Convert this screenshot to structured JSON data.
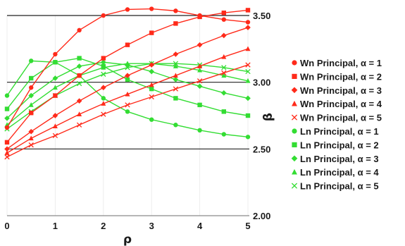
{
  "chart_data": {
    "type": "line",
    "xlabel": "ρ",
    "ylabel": "β",
    "xlim": [
      0,
      5
    ],
    "ylim": [
      2.0,
      3.5
    ],
    "x_ticks": [
      "0",
      "1",
      "2",
      "3",
      "4",
      "5"
    ],
    "y_ticks": [
      "2.00",
      "2.50",
      "3.00",
      "3.50"
    ],
    "grid": "horizontal black lines at y = 2.50, 3.00, 3.50; faint vertical lines at x ticks",
    "legend_placement": "right",
    "x": [
      0,
      0.5,
      1,
      1.5,
      2,
      2.5,
      3,
      3.5,
      4,
      4.5,
      5
    ],
    "series": [
      {
        "name": "Wn Principal, α = 1",
        "color": "#ff2a1a",
        "marker": "circle",
        "values": [
          2.66,
          2.96,
          3.21,
          3.39,
          3.5,
          3.545,
          3.55,
          3.535,
          3.5,
          3.47,
          3.45
        ]
      },
      {
        "name": "Wn Principal, α = 2",
        "color": "#ff2a1a",
        "marker": "square",
        "values": [
          2.55,
          2.77,
          2.9,
          3.05,
          3.18,
          3.28,
          3.37,
          3.44,
          3.49,
          3.52,
          3.54
        ]
      },
      {
        "name": "Wn Principal, α = 3",
        "color": "#ff2a1a",
        "marker": "diamond",
        "values": [
          2.5,
          2.63,
          2.75,
          2.86,
          2.96,
          3.05,
          3.13,
          3.21,
          3.28,
          3.35,
          3.41
        ]
      },
      {
        "name": "Wn Principal, α = 4",
        "color": "#ff2a1a",
        "marker": "triangle",
        "values": [
          2.47,
          2.58,
          2.67,
          2.76,
          2.84,
          2.91,
          2.98,
          3.05,
          3.12,
          3.19,
          3.25
        ]
      },
      {
        "name": "Wn Principal, α = 5",
        "color": "#ff2a1a",
        "marker": "x",
        "values": [
          2.44,
          2.53,
          2.6,
          2.68,
          2.76,
          2.83,
          2.89,
          2.95,
          3.01,
          3.07,
          3.13
        ]
      },
      {
        "name": "Ln Principal, α = 1",
        "color": "#33dd33",
        "marker": "circle",
        "values": [
          2.9,
          3.16,
          3.15,
          3.05,
          2.88,
          2.78,
          2.72,
          2.68,
          2.64,
          2.61,
          2.59
        ]
      },
      {
        "name": "Ln Principal, α = 2",
        "color": "#33dd33",
        "marker": "square",
        "values": [
          2.8,
          3.03,
          3.15,
          3.18,
          3.12,
          3.02,
          2.95,
          2.88,
          2.83,
          2.78,
          2.75
        ]
      },
      {
        "name": "Ln Principal, α = 3",
        "color": "#33dd33",
        "marker": "diamond",
        "values": [
          2.73,
          2.9,
          3.03,
          3.12,
          3.15,
          3.13,
          3.08,
          3.02,
          2.97,
          2.92,
          2.88
        ]
      },
      {
        "name": "Ln Principal, α = 4",
        "color": "#33dd33",
        "marker": "triangle",
        "values": [
          2.68,
          2.83,
          2.96,
          3.05,
          3.11,
          3.14,
          3.14,
          3.12,
          3.09,
          3.05,
          3.01
        ]
      },
      {
        "name": "Ln Principal, α = 5",
        "color": "#33dd33",
        "marker": "x",
        "values": [
          2.65,
          2.78,
          2.9,
          2.99,
          3.06,
          3.11,
          3.14,
          3.14,
          3.13,
          3.11,
          3.08
        ]
      }
    ]
  }
}
